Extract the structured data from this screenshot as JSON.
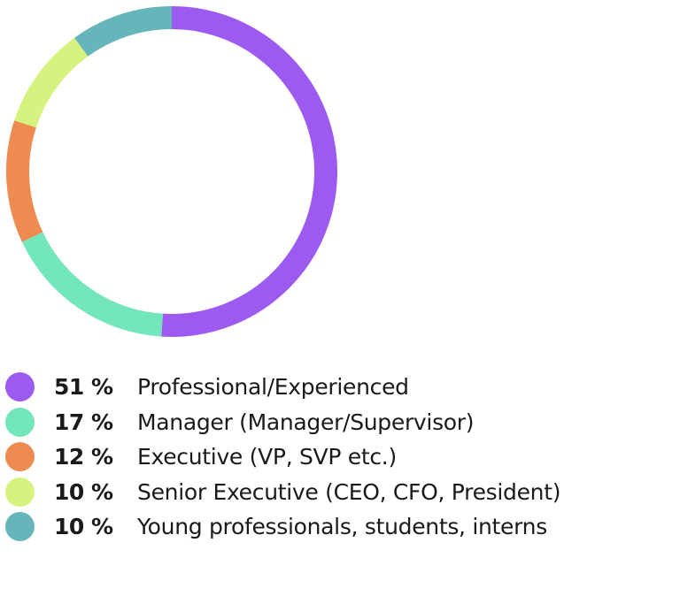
{
  "chart_data": {
    "type": "pie",
    "variant": "donut",
    "series": [
      {
        "name": "Professional/Experienced",
        "value": 51,
        "display": "51 %",
        "color": "#9c5af0"
      },
      {
        "name": "Manager (Manager/Supervisor)",
        "value": 17,
        "display": "17 %",
        "color": "#74e6bb"
      },
      {
        "name": "Executive (VP, SVP etc.)",
        "value": 12,
        "display": "12 %",
        "color": "#ee8b50"
      },
      {
        "name": "Senior Executive (CEO, CFO, President)",
        "value": 10,
        "display": "10 %",
        "color": "#d6f27f"
      },
      {
        "name": "Young professionals, students, interns",
        "value": 10,
        "display": "10 %",
        "color": "#65b5bb"
      }
    ],
    "legend_position": "bottom"
  }
}
